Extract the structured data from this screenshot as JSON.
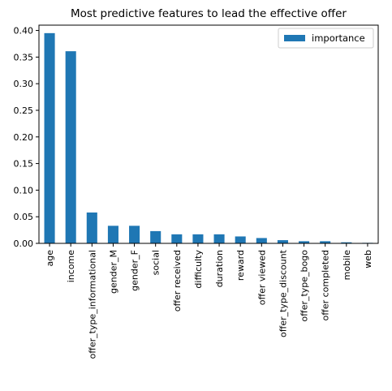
{
  "chart_data": {
    "type": "bar",
    "title": "Most predictive features to lead the effective offer",
    "xlabel": "",
    "ylabel": "",
    "categories": [
      "age",
      "income",
      "offer_type_informational",
      "gender_M",
      "gender_F",
      "social",
      "offer received",
      "difficulty",
      "duration",
      "reward",
      "offer viewed",
      "offer_type_discount",
      "offer_type_bogo",
      "offer completed",
      "mobile",
      "web"
    ],
    "series": [
      {
        "name": "importance",
        "values": [
          0.395,
          0.361,
          0.058,
          0.033,
          0.033,
          0.023,
          0.017,
          0.017,
          0.017,
          0.013,
          0.01,
          0.006,
          0.004,
          0.004,
          0.002,
          0.001
        ]
      }
    ],
    "ylim": [
      0,
      0.41
    ],
    "yticks": [
      0.0,
      0.05,
      0.1,
      0.15,
      0.2,
      0.25,
      0.3,
      0.35,
      0.4
    ],
    "ytick_labels": [
      "0.00",
      "0.05",
      "0.10",
      "0.15",
      "0.20",
      "0.25",
      "0.30",
      "0.35",
      "0.40"
    ],
    "grid": false,
    "legend_position": "top-right",
    "colors": {
      "bar": "#1f77b4",
      "axis": "#000000"
    }
  }
}
